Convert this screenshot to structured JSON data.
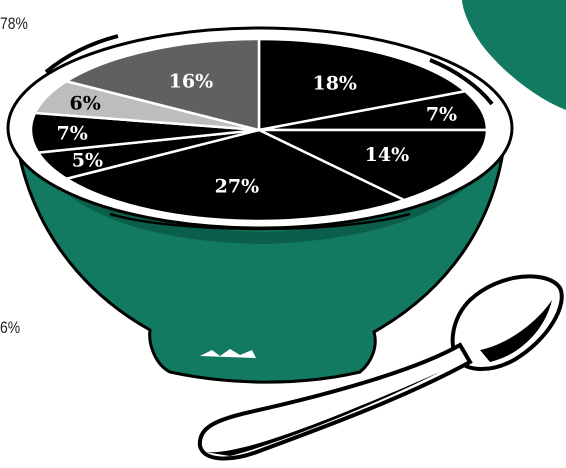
{
  "side_labels": {
    "top": "78%",
    "bottom": "6%"
  },
  "chart_data": {
    "type": "pie",
    "title": "",
    "values": [
      18,
      7,
      14,
      27,
      5,
      7,
      6,
      16
    ],
    "labels": [
      "18%",
      "7%",
      "14%",
      "27%",
      "5%",
      "7%",
      "6%",
      "16%"
    ],
    "colors": [
      "#000000",
      "#000000",
      "#000000",
      "#000000",
      "#000000",
      "#000000",
      "#bdbdbd",
      "#606060"
    ],
    "label_colors": [
      "#ffffff",
      "#ffffff",
      "#ffffff",
      "#ffffff",
      "#ffffff",
      "#ffffff",
      "#000000",
      "#ffffff"
    ],
    "start_angle_deg": 0,
    "direction": "clockwise",
    "legend": "none"
  },
  "colors": {
    "bowl": "#117a60",
    "bowl_shade": "#0b5e49",
    "outline": "#000000",
    "spoon_fill": "#ffffff",
    "background": "#ffffff"
  }
}
